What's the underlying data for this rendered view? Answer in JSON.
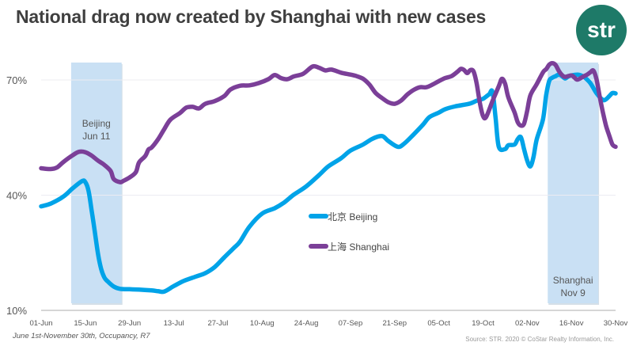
{
  "header": {
    "title": "National drag now created by Shanghai with new cases",
    "logo_text": "str"
  },
  "footer": {
    "footnote": "June 1st-November 30th, Occupancy, R7",
    "source": "Source: STR. 2020 © CoStar Realty Information, Inc."
  },
  "chart_data": {
    "type": "line",
    "title": "National drag now created by Shanghai with new cases",
    "xlabel": "",
    "ylabel": "Occupancy",
    "x_unit": "days since 01-Jun",
    "x_range": [
      0,
      182
    ],
    "ylim": [
      10,
      75
    ],
    "y_ticks": [
      {
        "value": 70,
        "label": "70%"
      },
      {
        "value": 40,
        "label": "40%"
      },
      {
        "value": 10,
        "label": "10%"
      }
    ],
    "x_ticks": [
      {
        "day": 0,
        "label": "01-Jun"
      },
      {
        "day": 14,
        "label": "15-Jun"
      },
      {
        "day": 28,
        "label": "29-Jun"
      },
      {
        "day": 42,
        "label": "13-Jul"
      },
      {
        "day": 56,
        "label": "27-Jul"
      },
      {
        "day": 70,
        "label": "10-Aug"
      },
      {
        "day": 84,
        "label": "24-Aug"
      },
      {
        "day": 98,
        "label": "07-Sep"
      },
      {
        "day": 112,
        "label": "21-Sep"
      },
      {
        "day": 126,
        "label": "05-Oct"
      },
      {
        "day": 140,
        "label": "19-Oct"
      },
      {
        "day": 154,
        "label": "02-Nov"
      },
      {
        "day": 168,
        "label": "16-Nov"
      },
      {
        "day": 182,
        "label": "30-Nov"
      }
    ],
    "grid": true,
    "legend_position": "center",
    "highlights": [
      {
        "name": "beijing-outbreak",
        "label_lines": [
          "Beijing",
          "Jun 11"
        ],
        "x_start": 9.5,
        "x_end": 25.5,
        "color": "#c9e0f4"
      },
      {
        "name": "shanghai-outbreak",
        "label_lines": [
          "Shanghai",
          "Nov 9"
        ],
        "x_start": 160.5,
        "x_end": 176.5,
        "color": "#c9e0f4"
      }
    ],
    "series": [
      {
        "name": "北京 Beijing",
        "color": "#00a3e8",
        "points": [
          [
            0,
            37.1
          ],
          [
            3,
            37.8
          ],
          [
            7,
            39.6
          ],
          [
            10,
            41.8
          ],
          [
            13,
            43.7
          ],
          [
            14,
            43.4
          ],
          [
            15,
            41.2
          ],
          [
            16,
            36.0
          ],
          [
            17,
            30.5
          ],
          [
            18,
            24.8
          ],
          [
            19,
            20.8
          ],
          [
            20,
            18.6
          ],
          [
            21,
            17.6
          ],
          [
            23,
            16.2
          ],
          [
            25,
            15.6
          ],
          [
            28,
            15.5
          ],
          [
            31,
            15.4
          ],
          [
            35,
            15.2
          ],
          [
            37,
            15.0
          ],
          [
            39,
            14.9
          ],
          [
            42,
            16.3
          ],
          [
            45,
            17.6
          ],
          [
            49,
            18.8
          ],
          [
            52,
            19.7
          ],
          [
            55,
            21.3
          ],
          [
            58,
            23.8
          ],
          [
            61,
            26.2
          ],
          [
            63,
            27.9
          ],
          [
            66,
            31.8
          ],
          [
            70,
            35.2
          ],
          [
            74,
            36.6
          ],
          [
            77,
            38.1
          ],
          [
            80,
            40.1
          ],
          [
            84,
            42.3
          ],
          [
            88,
            45.2
          ],
          [
            91,
            47.5
          ],
          [
            95,
            49.6
          ],
          [
            98,
            51.6
          ],
          [
            102,
            53.2
          ],
          [
            105,
            54.7
          ],
          [
            108,
            55.4
          ],
          [
            110,
            54.1
          ],
          [
            113,
            52.6
          ],
          [
            115,
            53.4
          ],
          [
            118,
            55.8
          ],
          [
            121,
            58.4
          ],
          [
            123,
            60.3
          ],
          [
            126,
            61.5
          ],
          [
            128,
            62.4
          ],
          [
            131,
            63.1
          ],
          [
            133,
            63.4
          ],
          [
            136,
            63.9
          ],
          [
            138,
            64.6
          ],
          [
            140,
            65.1
          ],
          [
            141,
            65.7
          ],
          [
            142,
            66.3
          ],
          [
            143,
            66.9
          ],
          [
            144,
            60.0
          ],
          [
            145,
            52.6
          ],
          [
            147,
            52.0
          ],
          [
            148,
            53.0
          ],
          [
            150,
            53.2
          ],
          [
            151,
            54.6
          ],
          [
            152,
            55.1
          ],
          [
            153,
            52.0
          ],
          [
            154,
            49.0
          ],
          [
            155,
            47.5
          ],
          [
            156,
            50.0
          ],
          [
            157,
            54.5
          ],
          [
            159,
            59.8
          ],
          [
            160,
            66.0
          ],
          [
            161,
            69.8
          ],
          [
            162,
            70.6
          ],
          [
            163,
            71.0
          ],
          [
            164,
            71.4
          ],
          [
            165,
            71.0
          ],
          [
            166,
            70.4
          ],
          [
            167,
            70.9
          ],
          [
            168,
            71.2
          ],
          [
            170,
            71.4
          ],
          [
            171,
            71.2
          ],
          [
            172,
            70.8
          ],
          [
            174,
            69.2
          ],
          [
            176,
            66.5
          ],
          [
            178,
            64.8
          ],
          [
            179,
            65.0
          ],
          [
            180,
            65.8
          ],
          [
            181,
            66.6
          ],
          [
            182,
            66.5
          ]
        ]
      },
      {
        "name": "上海 Shanghai",
        "color": "#7b3f98",
        "points": [
          [
            0,
            47.0
          ],
          [
            3,
            46.8
          ],
          [
            5,
            47.2
          ],
          [
            7,
            48.6
          ],
          [
            10,
            50.4
          ],
          [
            12,
            51.3
          ],
          [
            14,
            51.2
          ],
          [
            16,
            50.3
          ],
          [
            18,
            49.0
          ],
          [
            20,
            47.9
          ],
          [
            22,
            46.3
          ],
          [
            23,
            44.2
          ],
          [
            25,
            43.4
          ],
          [
            26,
            43.7
          ],
          [
            28,
            44.6
          ],
          [
            30,
            46.0
          ],
          [
            31,
            48.5
          ],
          [
            33,
            50.2
          ],
          [
            34,
            51.9
          ],
          [
            35,
            52.4
          ],
          [
            37,
            54.5
          ],
          [
            39,
            57.2
          ],
          [
            41,
            59.7
          ],
          [
            44,
            61.4
          ],
          [
            46,
            62.8
          ],
          [
            48,
            63.0
          ],
          [
            50,
            62.6
          ],
          [
            52,
            63.8
          ],
          [
            55,
            64.5
          ],
          [
            58,
            65.8
          ],
          [
            60,
            67.5
          ],
          [
            63,
            68.5
          ],
          [
            66,
            68.6
          ],
          [
            69,
            69.2
          ],
          [
            72,
            70.2
          ],
          [
            74,
            71.3
          ],
          [
            76,
            70.5
          ],
          [
            78,
            70.2
          ],
          [
            80,
            70.9
          ],
          [
            83,
            71.6
          ],
          [
            86,
            73.5
          ],
          [
            88,
            73.2
          ],
          [
            90,
            72.5
          ],
          [
            92,
            72.7
          ],
          [
            95,
            71.9
          ],
          [
            98,
            71.4
          ],
          [
            100,
            71.0
          ],
          [
            102,
            70.3
          ],
          [
            104,
            68.8
          ],
          [
            106,
            66.6
          ],
          [
            108,
            65.3
          ],
          [
            110,
            64.2
          ],
          [
            112,
            63.8
          ],
          [
            114,
            64.6
          ],
          [
            116,
            66.2
          ],
          [
            118,
            67.4
          ],
          [
            120,
            68.1
          ],
          [
            122,
            68.1
          ],
          [
            124,
            68.8
          ],
          [
            126,
            69.7
          ],
          [
            128,
            70.5
          ],
          [
            130,
            71.0
          ],
          [
            132,
            72.2
          ],
          [
            133,
            72.9
          ],
          [
            134,
            72.6
          ],
          [
            135,
            71.8
          ],
          [
            136,
            72.6
          ],
          [
            137,
            72.2
          ],
          [
            138,
            69.0
          ],
          [
            139,
            64.0
          ],
          [
            140,
            60.6
          ],
          [
            141,
            60.4
          ],
          [
            143,
            64.5
          ],
          [
            145,
            68.4
          ],
          [
            146,
            70.3
          ],
          [
            147,
            69.0
          ],
          [
            148,
            65.5
          ],
          [
            150,
            61.5
          ],
          [
            151,
            59.0
          ],
          [
            152,
            58.1
          ],
          [
            153,
            58.6
          ],
          [
            154,
            62.0
          ],
          [
            155,
            66.0
          ],
          [
            157,
            68.9
          ],
          [
            159,
            72.0
          ],
          [
            160,
            72.8
          ],
          [
            161,
            74.0
          ],
          [
            162,
            74.4
          ],
          [
            163,
            73.9
          ],
          [
            164,
            72.4
          ],
          [
            165,
            71.3
          ],
          [
            166,
            70.8
          ],
          [
            168,
            71.2
          ],
          [
            169,
            70.6
          ],
          [
            170,
            70.1
          ],
          [
            172,
            71.0
          ],
          [
            173,
            71.4
          ],
          [
            174,
            72.0
          ],
          [
            175,
            72.4
          ],
          [
            176,
            70.0
          ],
          [
            177,
            65.5
          ],
          [
            178,
            61.5
          ],
          [
            179,
            58.0
          ],
          [
            180,
            55.5
          ],
          [
            181,
            53.2
          ],
          [
            182,
            52.6
          ]
        ]
      }
    ]
  }
}
